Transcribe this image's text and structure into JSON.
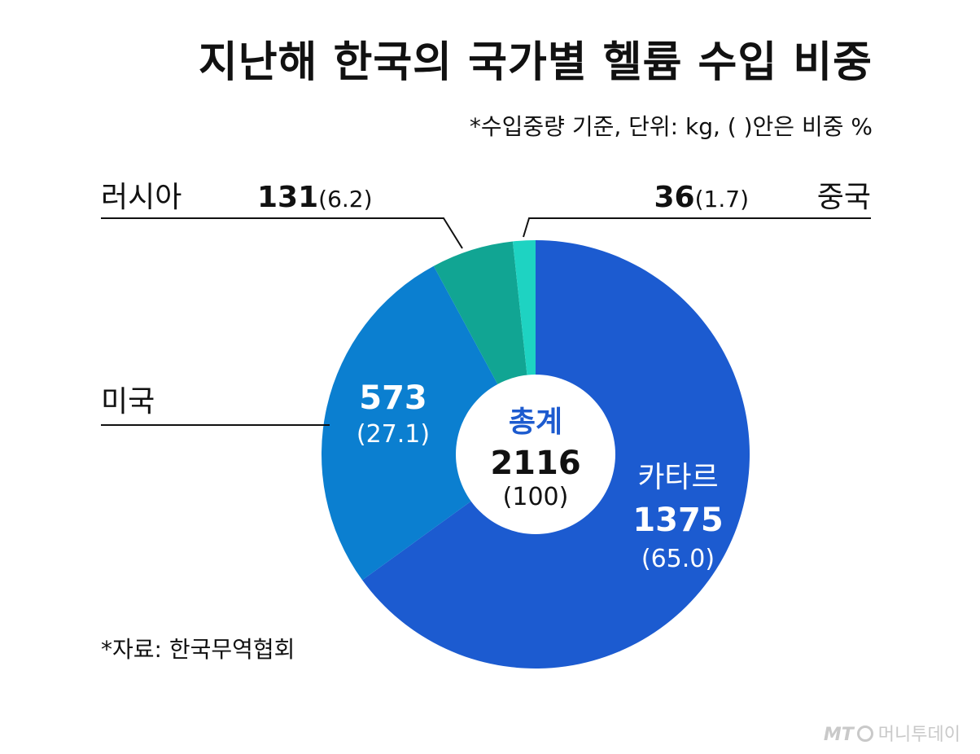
{
  "title": "지난해 한국의 국가별 헬륨 수입 비중",
  "subtitle": "*수입중량 기준, 단위: kg, (  )안은 비중 %",
  "source": "*자료: 한국무역협회",
  "logo": {
    "mark": "MT",
    "name": "머니투데이"
  },
  "colors": {
    "카타르": "#1c5bd0",
    "미국": "#0b7fd0",
    "러시아": "#11a593",
    "중국": "#1ed3c2",
    "center_title": "#1d5bcf"
  },
  "chart_data": {
    "type": "pie",
    "donut": true,
    "start_angle_deg": 0,
    "direction": "clockwise",
    "center": {
      "title": "총계",
      "value": "2116",
      "share": "(100)"
    },
    "slices": [
      {
        "name": "카타르",
        "value": 1375,
        "share": 65.0,
        "value_label": "1375",
        "share_label": "(65.0)"
      },
      {
        "name": "미국",
        "value": 573,
        "share": 27.1,
        "value_label": "573",
        "share_label": "(27.1)"
      },
      {
        "name": "러시아",
        "value": 131,
        "share": 6.2,
        "value_label": "131",
        "share_label": "(6.2)"
      },
      {
        "name": "중국",
        "value": 36,
        "share": 1.7,
        "value_label": "36",
        "share_label": "(1.7)"
      }
    ]
  }
}
